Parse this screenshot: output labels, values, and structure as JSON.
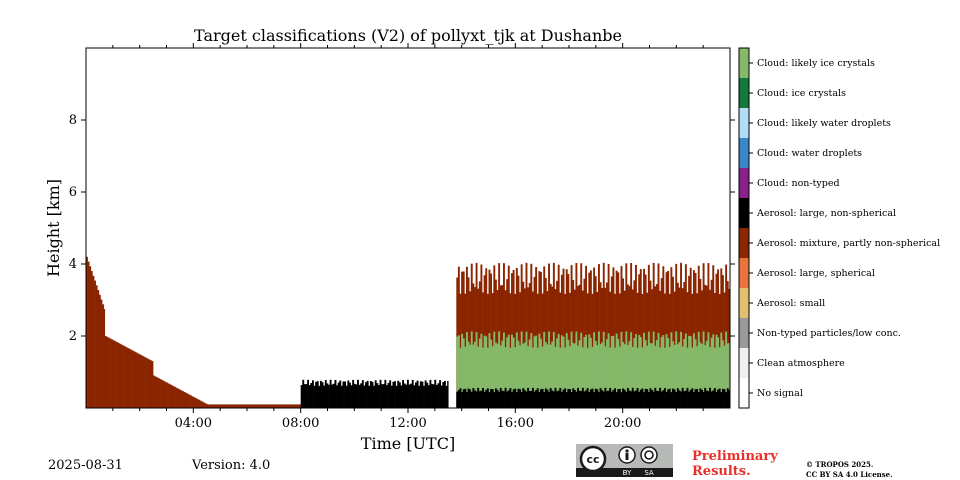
{
  "chart_data": {
    "type": "heatmap",
    "title": "Target classifications (V2) of pollyxt_tjk at Dushanbe",
    "xlabel": "Time [UTC]",
    "ylabel": "Height [km]",
    "xlim_hours": [
      0,
      24
    ],
    "ylim_km": [
      0,
      10
    ],
    "x_ticks": [
      {
        "value": 4,
        "label": "04:00"
      },
      {
        "value": 8,
        "label": "08:00"
      },
      {
        "value": 12,
        "label": "12:00"
      },
      {
        "value": 16,
        "label": "16:00"
      },
      {
        "value": 20,
        "label": "20:00"
      }
    ],
    "y_ticks": [
      {
        "value": 2,
        "label": "2"
      },
      {
        "value": 4,
        "label": "4"
      },
      {
        "value": 6,
        "label": "6"
      },
      {
        "value": 8,
        "label": "8"
      }
    ],
    "legend_placement": "right colorbar",
    "classes": [
      {
        "label": "No signal",
        "color": "#ffffff"
      },
      {
        "label": "Clean atmosphere",
        "color": "#f0f0f0"
      },
      {
        "label": "Non-typed particles/low conc.",
        "color": "#9a9a9a"
      },
      {
        "label": "Aerosol: small",
        "color": "#e0c070"
      },
      {
        "label": "Aerosol: large, spherical",
        "color": "#e8743b"
      },
      {
        "label": "Aerosol: mixture, partly non-spherical",
        "color": "#8b2500"
      },
      {
        "label": "Aerosol: large, non-spherical",
        "color": "#000000"
      },
      {
        "label": "Cloud: non-typed",
        "color": "#8a1f8a"
      },
      {
        "label": "Cloud: water droplets",
        "color": "#3a88c8"
      },
      {
        "label": "Cloud: likely water droplets",
        "color": "#b3dcf5"
      },
      {
        "label": "Cloud: ice crystals",
        "color": "#127a3a"
      },
      {
        "label": "Cloud: likely ice crystals",
        "color": "#86b86a"
      }
    ],
    "time_segments": [
      {
        "start": 0.0,
        "end": 0.7,
        "class": "Aerosol: mixture, partly non-spherical",
        "top_km": 4.2
      },
      {
        "start": 0.7,
        "end": 2.5,
        "class": "Aerosol: mixture, partly non-spherical",
        "top_km": 2.0
      },
      {
        "start": 2.5,
        "end": 8.0,
        "class": "Aerosol: mixture, partly non-spherical",
        "top_km": 0.9
      },
      {
        "start": 8.0,
        "end": 13.5,
        "class": "Aerosol: large, non-spherical",
        "top_km": 0.7
      },
      {
        "start": 13.8,
        "end": 24.0,
        "class": "Aerosol: large, non-spherical",
        "top_km": 0.5
      },
      {
        "start": 13.8,
        "end": 24.0,
        "class": "Cloud: likely ice crystals",
        "top_km": 1.9
      },
      {
        "start": 13.8,
        "end": 24.0,
        "class": "Aerosol: mixture, partly non-spherical",
        "top_km": 3.6
      }
    ]
  },
  "footer": {
    "date": "2025-08-31",
    "version": "Version: 4.0",
    "preliminary_line1": "Preliminary",
    "preliminary_line2": "Results.",
    "copyright_line1": "© TROPOS 2025.",
    "copyright_line2": "CC BY SA 4.0 License.",
    "cc_text": "cc",
    "by_text": "BY",
    "sa_text": "SA"
  }
}
